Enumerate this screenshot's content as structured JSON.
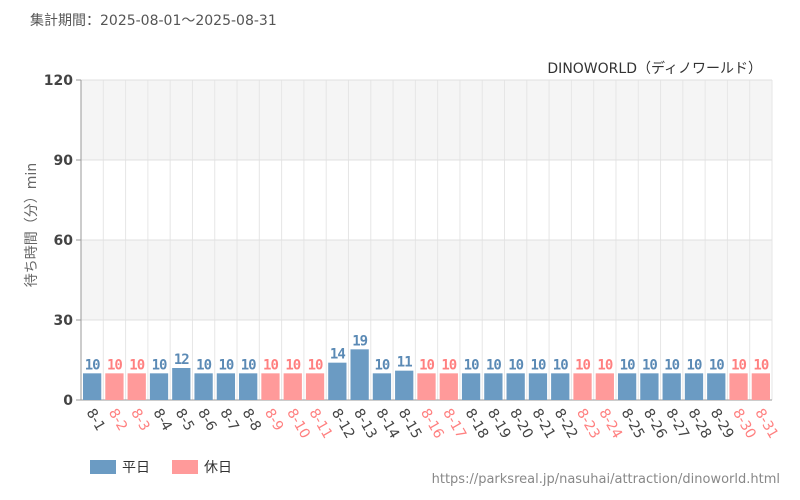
{
  "period_label": "集計期間：2025-08-01～2025-08-31",
  "source_url": "https://parksreal.jp/nasuhai/attraction/dinoworld.html",
  "colors": {
    "weekday": "#6b9bc3",
    "holiday": "#ff9a9a",
    "weekday_text": "#5b8ab5",
    "holiday_text": "#ff8080"
  },
  "legend": [
    {
      "key": "weekday",
      "label": "平日"
    },
    {
      "key": "holiday",
      "label": "休日"
    }
  ],
  "chart_data": {
    "type": "bar",
    "title": "DINOWORLD（ディノワールド）",
    "ylabel": "待ち時間（分）min",
    "ylim": [
      0,
      120
    ],
    "yticks": [
      0,
      30,
      60,
      90,
      120
    ],
    "categories": [
      "8-1",
      "8-2",
      "8-3",
      "8-4",
      "8-5",
      "8-6",
      "8-7",
      "8-8",
      "8-9",
      "8-10",
      "8-11",
      "8-12",
      "8-13",
      "8-14",
      "8-15",
      "8-16",
      "8-17",
      "8-18",
      "8-19",
      "8-20",
      "8-21",
      "8-22",
      "8-23",
      "8-24",
      "8-25",
      "8-26",
      "8-27",
      "8-28",
      "8-29",
      "8-30",
      "8-31"
    ],
    "values": [
      10,
      10,
      10,
      10,
      12,
      10,
      10,
      10,
      10,
      10,
      10,
      14,
      19,
      10,
      11,
      10,
      10,
      10,
      10,
      10,
      10,
      10,
      10,
      10,
      10,
      10,
      10,
      10,
      10,
      10,
      10
    ],
    "day_type": [
      "weekday",
      "holiday",
      "holiday",
      "weekday",
      "weekday",
      "weekday",
      "weekday",
      "weekday",
      "holiday",
      "holiday",
      "holiday",
      "weekday",
      "weekday",
      "weekday",
      "weekday",
      "holiday",
      "holiday",
      "weekday",
      "weekday",
      "weekday",
      "weekday",
      "weekday",
      "holiday",
      "holiday",
      "weekday",
      "weekday",
      "weekday",
      "weekday",
      "weekday",
      "holiday",
      "holiday"
    ]
  }
}
